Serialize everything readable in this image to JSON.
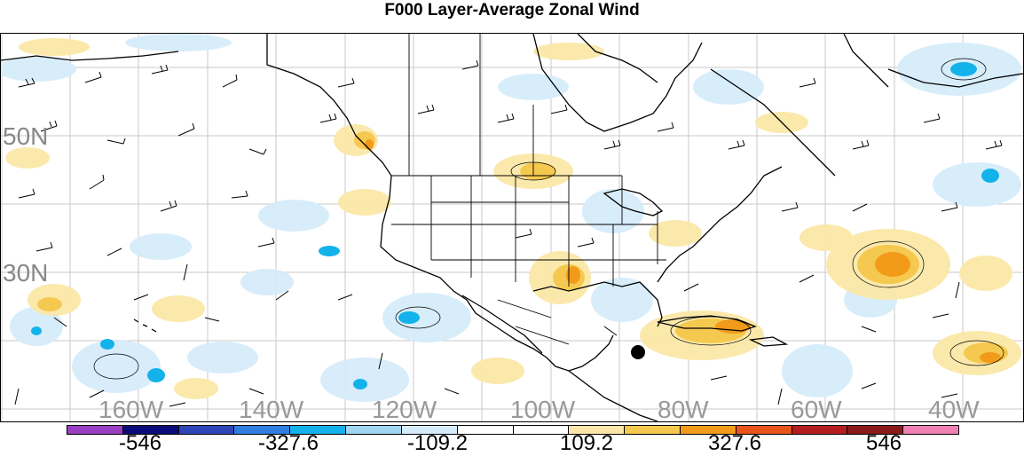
{
  "title": "F000 Layer-Average Zonal Wind",
  "lat_labels": [
    "50N",
    "30N"
  ],
  "lon_labels": [
    "160W",
    "140W",
    "120W",
    "100W",
    "80W",
    "60W",
    "40W"
  ],
  "colorbar": {
    "colors": [
      "#9a3fc2",
      "#0b0b7a",
      "#2e45b8",
      "#2f7ee0",
      "#13b2ea",
      "#9fd6f4",
      "#d6ecfa",
      "#ffffff",
      "#ffffff",
      "#fbe8a8",
      "#f5c94f",
      "#f29a1a",
      "#e8541a",
      "#b41e1e",
      "#8a1a1a",
      "#f080b4"
    ],
    "labels": [
      "-546",
      "-327.6",
      "-109.2",
      "109.2",
      "327.6",
      "546"
    ]
  }
}
